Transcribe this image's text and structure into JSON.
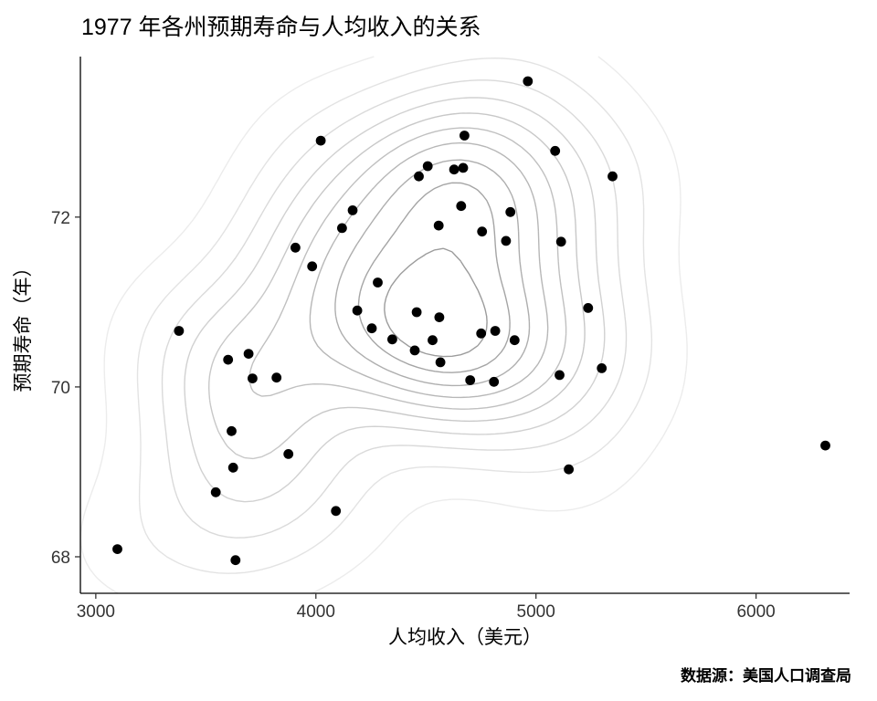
{
  "chart_data": {
    "type": "scatter",
    "title": "1977 年各州预期寿命与人均收入的关系",
    "xlabel": "人均收入（美元）",
    "ylabel": "预期寿命（年）",
    "caption": "数据源：美国人口调查局",
    "xlim": [
      2930,
      6425
    ],
    "ylim": [
      67.57,
      73.89
    ],
    "x_ticks": [
      3000,
      4000,
      5000,
      6000
    ],
    "y_ticks": [
      68,
      70,
      72
    ],
    "grid": false,
    "legend": "none",
    "point_color": "#000000",
    "axis_color": "#000000",
    "tick_label_color": "#333333",
    "overlay": "2d-density-contours",
    "contour": {
      "levels": 10,
      "bandwidth": [
        310,
        0.72
      ],
      "color_range": [
        "#ececec",
        "#9c9c9c"
      ]
    },
    "points": [
      [
        3624,
        69.05
      ],
      [
        6315,
        69.31
      ],
      [
        4530,
        70.55
      ],
      [
        3378,
        70.66
      ],
      [
        5114,
        71.71
      ],
      [
        4884,
        72.06
      ],
      [
        5348,
        72.48
      ],
      [
        4809,
        70.06
      ],
      [
        4815,
        70.66
      ],
      [
        4091,
        68.54
      ],
      [
        4963,
        73.6
      ],
      [
        4119,
        71.87
      ],
      [
        5107,
        70.14
      ],
      [
        4458,
        70.88
      ],
      [
        4628,
        72.56
      ],
      [
        4669,
        72.58
      ],
      [
        3712,
        70.1
      ],
      [
        3545,
        68.76
      ],
      [
        3694,
        70.39
      ],
      [
        5299,
        70.22
      ],
      [
        4755,
        71.83
      ],
      [
        4751,
        70.63
      ],
      [
        4675,
        72.96
      ],
      [
        3098,
        68.09
      ],
      [
        4254,
        70.69
      ],
      [
        4347,
        70.56
      ],
      [
        4508,
        72.6
      ],
      [
        5149,
        69.03
      ],
      [
        4281,
        71.23
      ],
      [
        5237,
        70.93
      ],
      [
        3601,
        70.32
      ],
      [
        4903,
        70.55
      ],
      [
        3875,
        69.21
      ],
      [
        5087,
        72.78
      ],
      [
        4561,
        70.82
      ],
      [
        3983,
        71.42
      ],
      [
        4660,
        72.13
      ],
      [
        4449,
        70.43
      ],
      [
        4558,
        71.9
      ],
      [
        3635,
        67.96
      ],
      [
        4167,
        72.08
      ],
      [
        3821,
        70.11
      ],
      [
        4188,
        70.9
      ],
      [
        4022,
        72.9
      ],
      [
        3907,
        71.64
      ],
      [
        4701,
        70.08
      ],
      [
        4864,
        71.72
      ],
      [
        3617,
        69.48
      ],
      [
        4468,
        72.48
      ],
      [
        4566,
        70.29
      ]
    ]
  }
}
